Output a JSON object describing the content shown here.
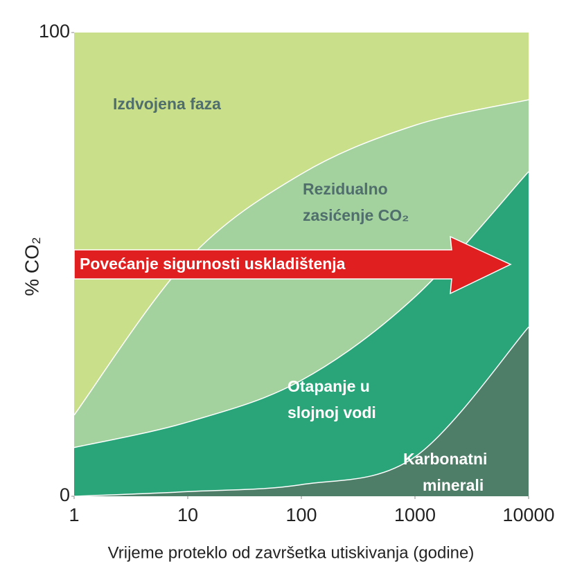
{
  "chart_data": {
    "type": "stacked_area",
    "x_label": "Vrijeme proteklo od završetka utiskivanja (godine)",
    "y_label": "% CO₂",
    "x": [
      1,
      10,
      100,
      1000,
      10000
    ],
    "xlim": [
      1,
      10000
    ],
    "xticks": [
      1,
      10,
      100,
      1000,
      10000
    ],
    "x_log": true,
    "ylim": [
      0,
      100
    ],
    "yticks": [
      0,
      100
    ],
    "series": [
      {
        "name": "Karbonatni\nminerali",
        "color": "#4e7d68",
        "values": [
          0,
          1,
          2.5,
          8.5,
          36.5
        ]
      },
      {
        "name": "Otapanje u\nslojnoj vodi",
        "color": "#2aa57a",
        "values": [
          10.5,
          15,
          22.5,
          34.5,
          33.5
        ]
      },
      {
        "name": "Rezidualno\nzasićenje CO₂",
        "color": "#a3d29f",
        "values": [
          7,
          35,
          44.5,
          37,
          15.5
        ]
      },
      {
        "name": "Izdvojena faza",
        "color": "#c9df8a",
        "values": [
          82.5,
          49,
          30.5,
          20,
          14.5
        ]
      }
    ],
    "annotation": {
      "text": "Povećanje sigurnosti uskladištenja",
      "color": "#e02020"
    }
  }
}
